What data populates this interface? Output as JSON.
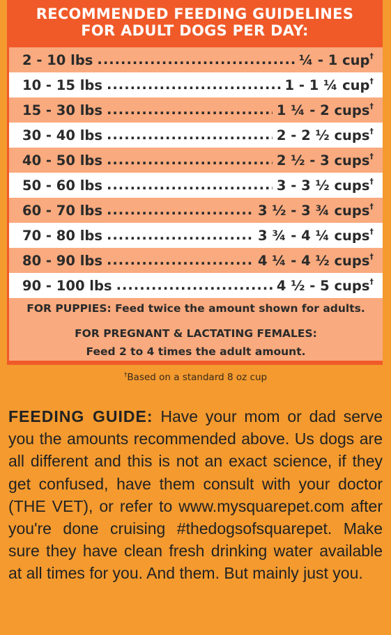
{
  "header": {
    "line1": "RECOMMENDED FEEDING GUIDELINES",
    "line2": "FOR ADULT DOGS PER DAY:"
  },
  "rows": [
    {
      "weight": "2 - 10 lbs",
      "amount": "¼ - 1 cup",
      "mark": "†"
    },
    {
      "weight": "10 - 15 lbs",
      "amount": "1 - 1 ¼ cup",
      "mark": "†"
    },
    {
      "weight": "15 - 30 lbs",
      "amount": "1 ¼ - 2 cups",
      "mark": "†"
    },
    {
      "weight": "30 - 40 lbs",
      "amount": "2 - 2 ½ cups",
      "mark": "†"
    },
    {
      "weight": "40 - 50 lbs",
      "amount": "2 ½ - 3 cups",
      "mark": "†"
    },
    {
      "weight": "50 - 60 lbs",
      "amount": "3 - 3 ½ cups",
      "mark": "†"
    },
    {
      "weight": "60 - 70 lbs",
      "amount": "3 ½ - 3 ¾ cups",
      "mark": "†"
    },
    {
      "weight": "70 - 80 lbs",
      "amount": "3 ¾ - 4 ¼ cups",
      "mark": "†"
    },
    {
      "weight": "80 - 90 lbs",
      "amount": "4 ¼ - 4 ½ cups",
      "mark": "†"
    },
    {
      "weight": "90 - 100 lbs",
      "amount": "4 ½ - 5 cups",
      "mark": "†"
    }
  ],
  "notes": {
    "puppies": "FOR PUPPIES: Feed twice the amount shown for adults.",
    "pregnant_line1": "FOR PREGNANT & LACTATING FEMALES:",
    "pregnant_line2": "Feed 2 to 4 times the adult amount."
  },
  "footnote": {
    "mark": "†",
    "text": "Based on a standard 8 oz cup"
  },
  "guide": {
    "lead": "FEEDING GUIDE:",
    "body": "Have your mom or dad serve you the amounts recommended above. Us dogs are all different and this is not an exact science, if they get confused, have them consult with your doctor (THE VET), or refer to www.mysquarepet.com after you're done cruising #thedogsofsquarepet. Make sure they have clean fresh drinking water available at all times for you. And them. But mainly just you."
  },
  "colors": {
    "page_background": "#f49a2f",
    "panel_background": "#f05a28",
    "row_alt": "#f9aa7e",
    "row_white": "#ffffff"
  }
}
